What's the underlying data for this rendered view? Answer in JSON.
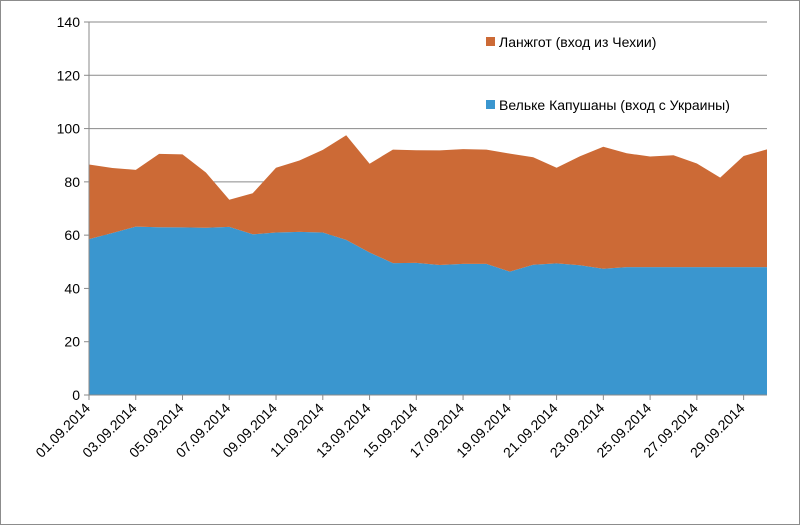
{
  "chart_data": {
    "type": "area",
    "stacked": true,
    "grid": "horizontal",
    "legend_position": "top-right",
    "ylim": [
      0,
      140
    ],
    "yticks": [
      0,
      20,
      40,
      60,
      80,
      100,
      120,
      140
    ],
    "x": [
      "01.09.2014",
      "02.09.2014",
      "03.09.2014",
      "04.09.2014",
      "05.09.2014",
      "06.09.2014",
      "07.09.2014",
      "08.09.2014",
      "09.09.2014",
      "10.09.2014",
      "11.09.2014",
      "12.09.2014",
      "13.09.2014",
      "14.09.2014",
      "15.09.2014",
      "16.09.2014",
      "17.09.2014",
      "18.09.2014",
      "19.09.2014",
      "20.09.2014",
      "21.09.2014",
      "22.09.2014",
      "23.09.2014",
      "24.09.2014",
      "25.09.2014",
      "26.09.2014",
      "27.09.2014",
      "28.09.2014",
      "29.09.2014",
      "30.09.2014"
    ],
    "xtick_labels": [
      "01.09.2014",
      "03.09.2014",
      "05.09.2014",
      "07.09.2014",
      "09.09.2014",
      "11.09.2014",
      "13.09.2014",
      "15.09.2014",
      "17.09.2014",
      "19.09.2014",
      "21.09.2014",
      "23.09.2014",
      "25.09.2014",
      "27.09.2014",
      "29.09.2014"
    ],
    "series": [
      {
        "name": "Вельке Капушаны (вход с Украины)",
        "color": "#3a96cf",
        "values": [
          58.5,
          60.8,
          63.2,
          63.0,
          62.9,
          62.8,
          63.1,
          60.3,
          61.0,
          61.2,
          61.0,
          58.2,
          53.5,
          49.5,
          49.6,
          48.8,
          49.2,
          49.2,
          46.3,
          48.9,
          49.4,
          48.7,
          47.4,
          48.0,
          48.0,
          48.0,
          48.0,
          48.0,
          48.0,
          48.0
        ]
      },
      {
        "name": "Ланжгот (вход из Чехии)",
        "color": "#cc6a36",
        "values": [
          28.0,
          24.4,
          21.3,
          27.5,
          27.4,
          20.7,
          10.2,
          15.4,
          24.3,
          26.8,
          31.0,
          39.3,
          33.3,
          42.6,
          42.3,
          43.0,
          43.1,
          42.9,
          44.3,
          40.3,
          35.9,
          40.9,
          45.8,
          42.7,
          41.5,
          42.0,
          38.9,
          33.6,
          41.7,
          44.2
        ]
      }
    ]
  }
}
